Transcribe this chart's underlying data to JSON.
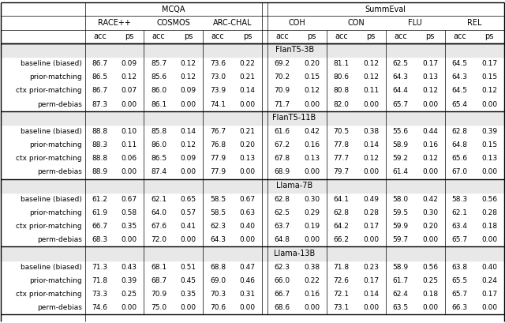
{
  "sections": [
    {
      "name": "FlanT5-3B",
      "rows": [
        [
          "baseline (biased)",
          "86.7",
          "0.09",
          "85.7",
          "0.12",
          "73.6",
          "0.22",
          "69.2",
          "0.20",
          "81.1",
          "0.12",
          "62.5",
          "0.17",
          "64.5",
          "0.17"
        ],
        [
          "prior-matching",
          "86.5",
          "0.12",
          "85.6",
          "0.12",
          "73.0",
          "0.21",
          "70.2",
          "0.15",
          "80.6",
          "0.12",
          "64.3",
          "0.13",
          "64.3",
          "0.15"
        ],
        [
          "ctx prior-matching",
          "86.7",
          "0.07",
          "86.0",
          "0.09",
          "73.9",
          "0.14",
          "70.9",
          "0.12",
          "80.8",
          "0.11",
          "64.4",
          "0.12",
          "64.5",
          "0.12"
        ],
        [
          "perm-debias",
          "87.3",
          "0.00",
          "86.1",
          "0.00",
          "74.1",
          "0.00",
          "71.7",
          "0.00",
          "82.0",
          "0.00",
          "65.7",
          "0.00",
          "65.4",
          "0.00"
        ]
      ]
    },
    {
      "name": "FlanT5-11B",
      "rows": [
        [
          "baseline (biased)",
          "88.8",
          "0.10",
          "85.8",
          "0.14",
          "76.7",
          "0.21",
          "61.6",
          "0.42",
          "70.5",
          "0.38",
          "55.6",
          "0.44",
          "62.8",
          "0.39"
        ],
        [
          "prior-matching",
          "88.3",
          "0.11",
          "86.0",
          "0.12",
          "76.8",
          "0.20",
          "67.2",
          "0.16",
          "77.8",
          "0.14",
          "58.9",
          "0.16",
          "64.8",
          "0.15"
        ],
        [
          "ctx prior-matching",
          "88.8",
          "0.06",
          "86.5",
          "0.09",
          "77.9",
          "0.13",
          "67.8",
          "0.13",
          "77.7",
          "0.12",
          "59.2",
          "0.12",
          "65.6",
          "0.13"
        ],
        [
          "perm-debias",
          "88.9",
          "0.00",
          "87.4",
          "0.00",
          "77.9",
          "0.00",
          "68.9",
          "0.00",
          "79.7",
          "0.00",
          "61.4",
          "0.00",
          "67.0",
          "0.00"
        ]
      ]
    },
    {
      "name": "Llama-7B",
      "rows": [
        [
          "baseline (biased)",
          "61.2",
          "0.67",
          "62.1",
          "0.65",
          "58.5",
          "0.67",
          "62.8",
          "0.30",
          "64.1",
          "0.49",
          "58.0",
          "0.42",
          "58.3",
          "0.56"
        ],
        [
          "prior-matching",
          "61.9",
          "0.58",
          "64.0",
          "0.57",
          "58.5",
          "0.63",
          "62.5",
          "0.29",
          "62.8",
          "0.28",
          "59.5",
          "0.30",
          "62.1",
          "0.28"
        ],
        [
          "ctx prior-matching",
          "66.7",
          "0.35",
          "67.6",
          "0.41",
          "62.3",
          "0.40",
          "63.7",
          "0.19",
          "64.2",
          "0.17",
          "59.9",
          "0.20",
          "63.4",
          "0.18"
        ],
        [
          "perm-debias",
          "68.3",
          "0.00",
          "72.0",
          "0.00",
          "64.3",
          "0.00",
          "64.8",
          "0.00",
          "66.2",
          "0.00",
          "59.7",
          "0.00",
          "65.7",
          "0.00"
        ]
      ]
    },
    {
      "name": "Llama-13B",
      "rows": [
        [
          "baseline (biased)",
          "71.3",
          "0.43",
          "68.1",
          "0.51",
          "68.8",
          "0.47",
          "62.3",
          "0.38",
          "71.8",
          "0.23",
          "58.9",
          "0.56",
          "63.8",
          "0.40"
        ],
        [
          "prior-matching",
          "71.8",
          "0.39",
          "68.7",
          "0.45",
          "69.0",
          "0.46",
          "66.0",
          "0.22",
          "72.6",
          "0.17",
          "61.7",
          "0.25",
          "65.5",
          "0.24"
        ],
        [
          "ctx prior-matching",
          "73.3",
          "0.25",
          "70.9",
          "0.35",
          "70.3",
          "0.31",
          "66.7",
          "0.16",
          "72.1",
          "0.14",
          "62.4",
          "0.18",
          "65.7",
          "0.17"
        ],
        [
          "perm-debias",
          "74.6",
          "0.00",
          "75.0",
          "0.00",
          "70.6",
          "0.00",
          "68.6",
          "0.00",
          "73.1",
          "0.00",
          "63.5",
          "0.00",
          "66.3",
          "0.00"
        ]
      ]
    }
  ],
  "fs_data": 6.5,
  "fs_header": 7.0,
  "fs_section": 7.0,
  "section_bg": "#e8e8e8",
  "lw_thick": 1.0,
  "lw_thin": 0.5
}
